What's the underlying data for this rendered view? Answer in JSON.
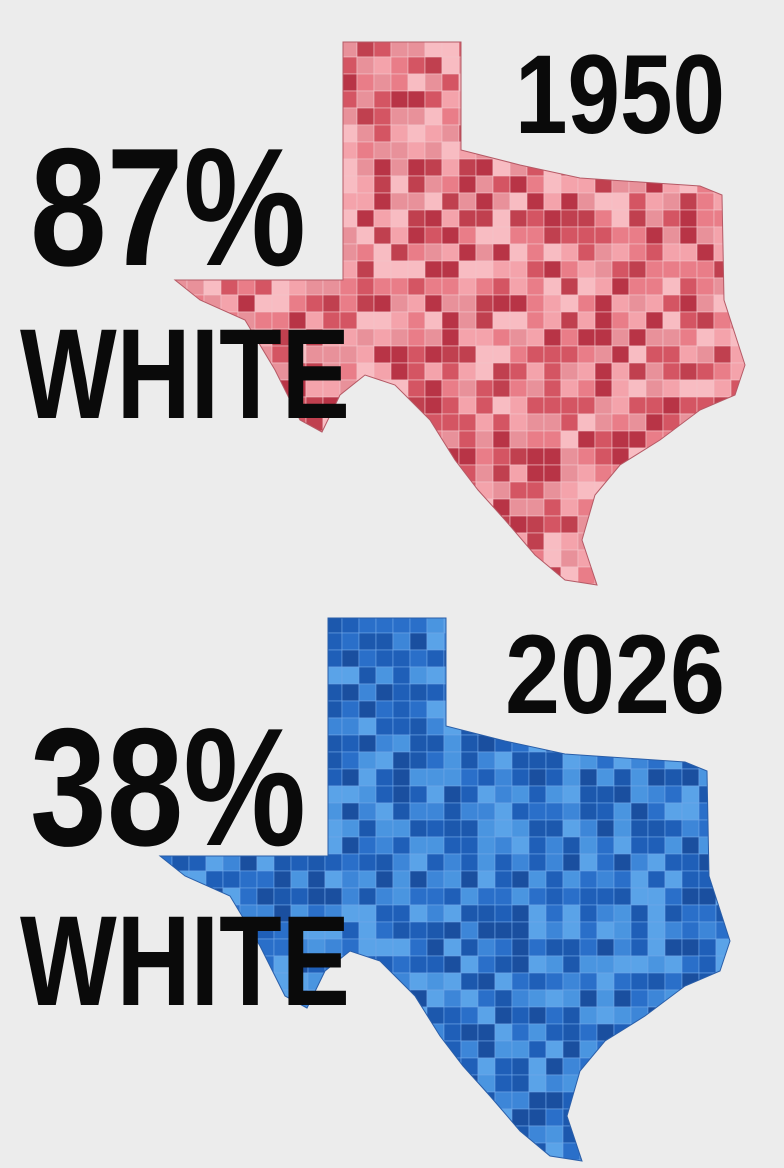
{
  "panels": [
    {
      "year": "1950",
      "percent": "87%",
      "label": "WHITE"
    },
    {
      "year": "2026",
      "percent": "38%",
      "label": "WHITE"
    }
  ]
}
